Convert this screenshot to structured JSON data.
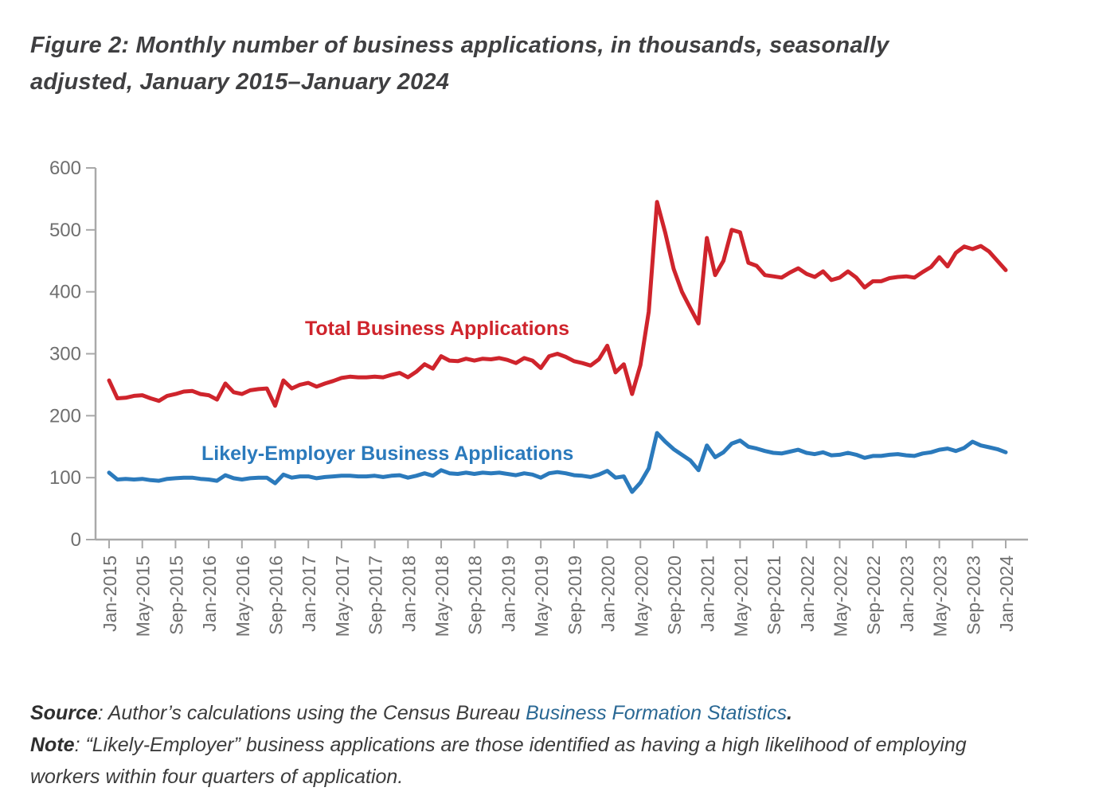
{
  "title": {
    "line1": "Figure 2: Monthly number of business applications, in thousands, seasonally",
    "line2": "adjusted, January 2015–January 2024"
  },
  "source": {
    "label": "Source",
    "text": ": Author’s calculations using the Census Bureau ",
    "link": "Business Formation Statistics",
    "suffix": "."
  },
  "note": {
    "label": "Note",
    "line1": ": “Likely-Employer” business applications are those identified as having a high likelihood of employing",
    "line2": "workers within four quarters of application."
  },
  "chart_data": {
    "type": "line",
    "title": "Monthly number of business applications, in thousands, seasonally adjusted, January 2015–January 2024",
    "x_frequency": "monthly",
    "x_start": "Jan-2015",
    "x_end": "Jan-2024",
    "x_tick_labels": [
      "Jan-2015",
      "May-2015",
      "Sep-2015",
      "Jan-2016",
      "May-2016",
      "Sep-2016",
      "Jan-2017",
      "May-2017",
      "Sep-2017",
      "Jan-2018",
      "May-2018",
      "Sep-2018",
      "Jan-2019",
      "May-2019",
      "Sep-2019",
      "Jan-2020",
      "May-2020",
      "Sep-2020",
      "Jan-2021",
      "May-2021",
      "Sep-2021",
      "Jan-2022",
      "May-2022",
      "Sep-2022",
      "Jan-2023",
      "May-2023",
      "Sep-2023",
      "Jan-2024"
    ],
    "ylim": [
      0,
      600
    ],
    "y_ticks": [
      0,
      100,
      200,
      300,
      400,
      500,
      600
    ],
    "grid": false,
    "axis_color": "#a9a9a9",
    "tick_label_color": "#6f6f6f",
    "legend_position": "inline-annotations",
    "series": [
      {
        "name": "Total Business Applications",
        "color": "#cf242c",
        "values": [
          257,
          228,
          229,
          232,
          233,
          228,
          224,
          232,
          235,
          239,
          240,
          235,
          233,
          226,
          252,
          238,
          235,
          241,
          243,
          244,
          216,
          257,
          244,
          250,
          253,
          247,
          252,
          256,
          261,
          263,
          262,
          262,
          263,
          262,
          266,
          269,
          262,
          271,
          283,
          276,
          296,
          289,
          288,
          292,
          289,
          292,
          291,
          293,
          290,
          285,
          293,
          289,
          277,
          296,
          300,
          295,
          288,
          285,
          281,
          291,
          313,
          270,
          283,
          235,
          282,
          368,
          545,
          495,
          437,
          400,
          374,
          349,
          487,
          427,
          450,
          500,
          496,
          447,
          442,
          427,
          425,
          423,
          431,
          438,
          429,
          424,
          433,
          419,
          423,
          433,
          423,
          407,
          417,
          417,
          422,
          424,
          425,
          423,
          432,
          440,
          456,
          441,
          463,
          473,
          469,
          474,
          465,
          450,
          435
        ]
      },
      {
        "name": "Likely-Employer Business Applications",
        "color": "#2b7abc",
        "values": [
          108,
          97,
          98,
          97,
          98,
          96,
          95,
          98,
          99,
          100,
          100,
          98,
          97,
          95,
          104,
          99,
          97,
          99,
          100,
          100,
          91,
          105,
          100,
          102,
          102,
          99,
          101,
          102,
          103,
          103,
          102,
          102,
          103,
          101,
          103,
          104,
          100,
          103,
          107,
          103,
          112,
          107,
          106,
          108,
          106,
          108,
          107,
          108,
          106,
          104,
          107,
          105,
          100,
          107,
          109,
          107,
          104,
          103,
          101,
          105,
          111,
          100,
          102,
          77,
          92,
          115,
          172,
          158,
          146,
          137,
          128,
          112,
          152,
          133,
          141,
          155,
          160,
          150,
          147,
          143,
          140,
          139,
          142,
          145,
          140,
          138,
          141,
          136,
          137,
          140,
          137,
          132,
          135,
          135,
          137,
          138,
          136,
          135,
          139,
          141,
          145,
          147,
          143,
          148,
          158,
          152,
          149,
          146,
          141
        ]
      }
    ]
  }
}
